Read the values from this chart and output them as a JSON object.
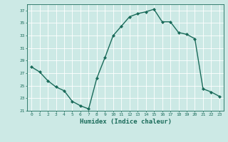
{
  "x": [
    0,
    1,
    2,
    3,
    4,
    5,
    6,
    7,
    8,
    9,
    10,
    11,
    12,
    13,
    14,
    15,
    16,
    17,
    18,
    19,
    20,
    21,
    22,
    23
  ],
  "y": [
    28.0,
    27.2,
    25.8,
    24.8,
    24.2,
    22.5,
    21.8,
    21.3,
    26.2,
    29.5,
    33.0,
    34.5,
    36.0,
    36.5,
    36.8,
    37.2,
    35.2,
    35.2,
    33.5,
    33.2,
    32.5,
    24.5,
    24.0,
    23.3
  ],
  "xlabel": "Humidex (Indice chaleur)",
  "ylim": [
    21,
    38
  ],
  "xlim": [
    -0.5,
    23.5
  ],
  "yticks": [
    21,
    23,
    25,
    27,
    29,
    31,
    33,
    35,
    37
  ],
  "xticks": [
    0,
    1,
    2,
    3,
    4,
    5,
    6,
    7,
    8,
    9,
    10,
    11,
    12,
    13,
    14,
    15,
    16,
    17,
    18,
    19,
    20,
    21,
    22,
    23
  ],
  "line_color": "#1a6b5a",
  "marker_color": "#1a6b5a",
  "bg_color": "#cce9e5",
  "grid_color": "#ffffff",
  "label_color": "#1a6b5a",
  "tick_color": "#1a6b5a",
  "spine_color": "#1a6b5a"
}
